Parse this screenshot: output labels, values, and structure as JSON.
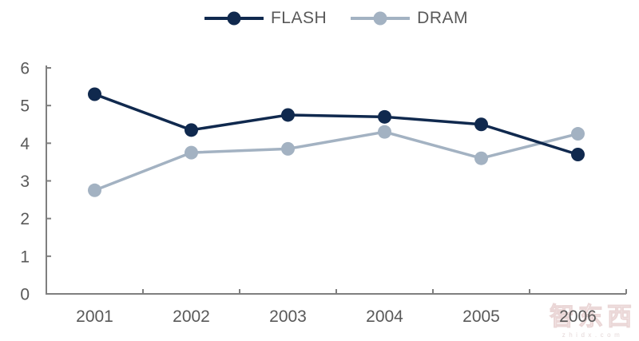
{
  "chart_data": {
    "type": "line",
    "title": "",
    "xlabel": "",
    "ylabel": "",
    "categories": [
      "2001",
      "2002",
      "2003",
      "2004",
      "2005",
      "2006"
    ],
    "series": [
      {
        "name": "FLASH",
        "color": "#10294E",
        "values": [
          5.3,
          4.35,
          4.75,
          4.7,
          4.5,
          3.7
        ]
      },
      {
        "name": "DRAM",
        "color": "#A3B2C2",
        "values": [
          2.75,
          3.75,
          3.85,
          4.3,
          3.6,
          4.25
        ]
      }
    ],
    "ylim": [
      0,
      6
    ],
    "yticks": [
      0,
      1,
      2,
      3,
      4,
      5,
      6
    ],
    "grid": false,
    "legend_position": "top",
    "axis_color": "#7F7F7F",
    "label_color": "#595959",
    "marker": "circle"
  },
  "watermark": {
    "logo": "智东西",
    "caption": "zhidx.com"
  }
}
